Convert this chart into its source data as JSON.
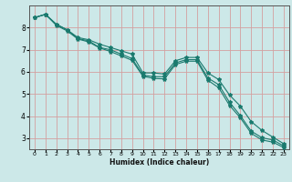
{
  "title": "",
  "xlabel": "Humidex (Indice chaleur)",
  "bg_color": "#cce8e8",
  "line_color": "#1a7a6e",
  "grid_color": "#d4a0a0",
  "xlim": [
    -0.5,
    23.5
  ],
  "ylim": [
    2.5,
    9.0
  ],
  "yticks": [
    3,
    4,
    5,
    6,
    7,
    8
  ],
  "xticks": [
    0,
    1,
    2,
    3,
    4,
    5,
    6,
    7,
    8,
    9,
    10,
    11,
    12,
    13,
    14,
    15,
    16,
    17,
    18,
    19,
    20,
    21,
    22,
    23
  ],
  "series": [
    {
      "x": [
        0,
        1,
        2,
        3,
        4,
        5,
        6,
        7,
        8,
        9,
        10,
        11,
        12,
        13,
        14,
        15,
        16,
        17,
        18,
        19,
        20,
        21,
        22,
        23
      ],
      "y": [
        8.45,
        8.6,
        8.15,
        7.9,
        7.55,
        7.45,
        7.25,
        7.1,
        6.95,
        6.8,
        5.95,
        5.95,
        5.9,
        6.5,
        6.65,
        6.65,
        5.95,
        5.65,
        4.95,
        4.45,
        3.75,
        3.35,
        3.05,
        2.75
      ]
    },
    {
      "x": [
        0,
        1,
        2,
        3,
        4,
        5,
        6,
        7,
        8,
        9,
        10,
        11,
        12,
        13,
        14,
        15,
        16,
        17,
        18,
        19,
        20,
        21,
        22,
        23
      ],
      "y": [
        8.45,
        8.6,
        8.15,
        7.9,
        7.5,
        7.4,
        7.1,
        7.0,
        6.8,
        6.6,
        5.85,
        5.78,
        5.78,
        6.4,
        6.55,
        6.55,
        5.72,
        5.42,
        4.62,
        4.02,
        3.32,
        3.02,
        2.92,
        2.65
      ]
    },
    {
      "x": [
        0,
        1,
        2,
        3,
        4,
        5,
        6,
        7,
        8,
        9,
        10,
        11,
        12,
        13,
        14,
        15,
        16,
        17,
        18,
        19,
        20,
        21,
        22,
        23
      ],
      "y": [
        8.45,
        8.6,
        8.1,
        7.85,
        7.48,
        7.35,
        7.08,
        6.92,
        6.72,
        6.52,
        5.8,
        5.7,
        5.68,
        6.33,
        6.48,
        6.48,
        5.62,
        5.28,
        4.48,
        3.92,
        3.22,
        2.92,
        2.82,
        2.58
      ]
    }
  ]
}
